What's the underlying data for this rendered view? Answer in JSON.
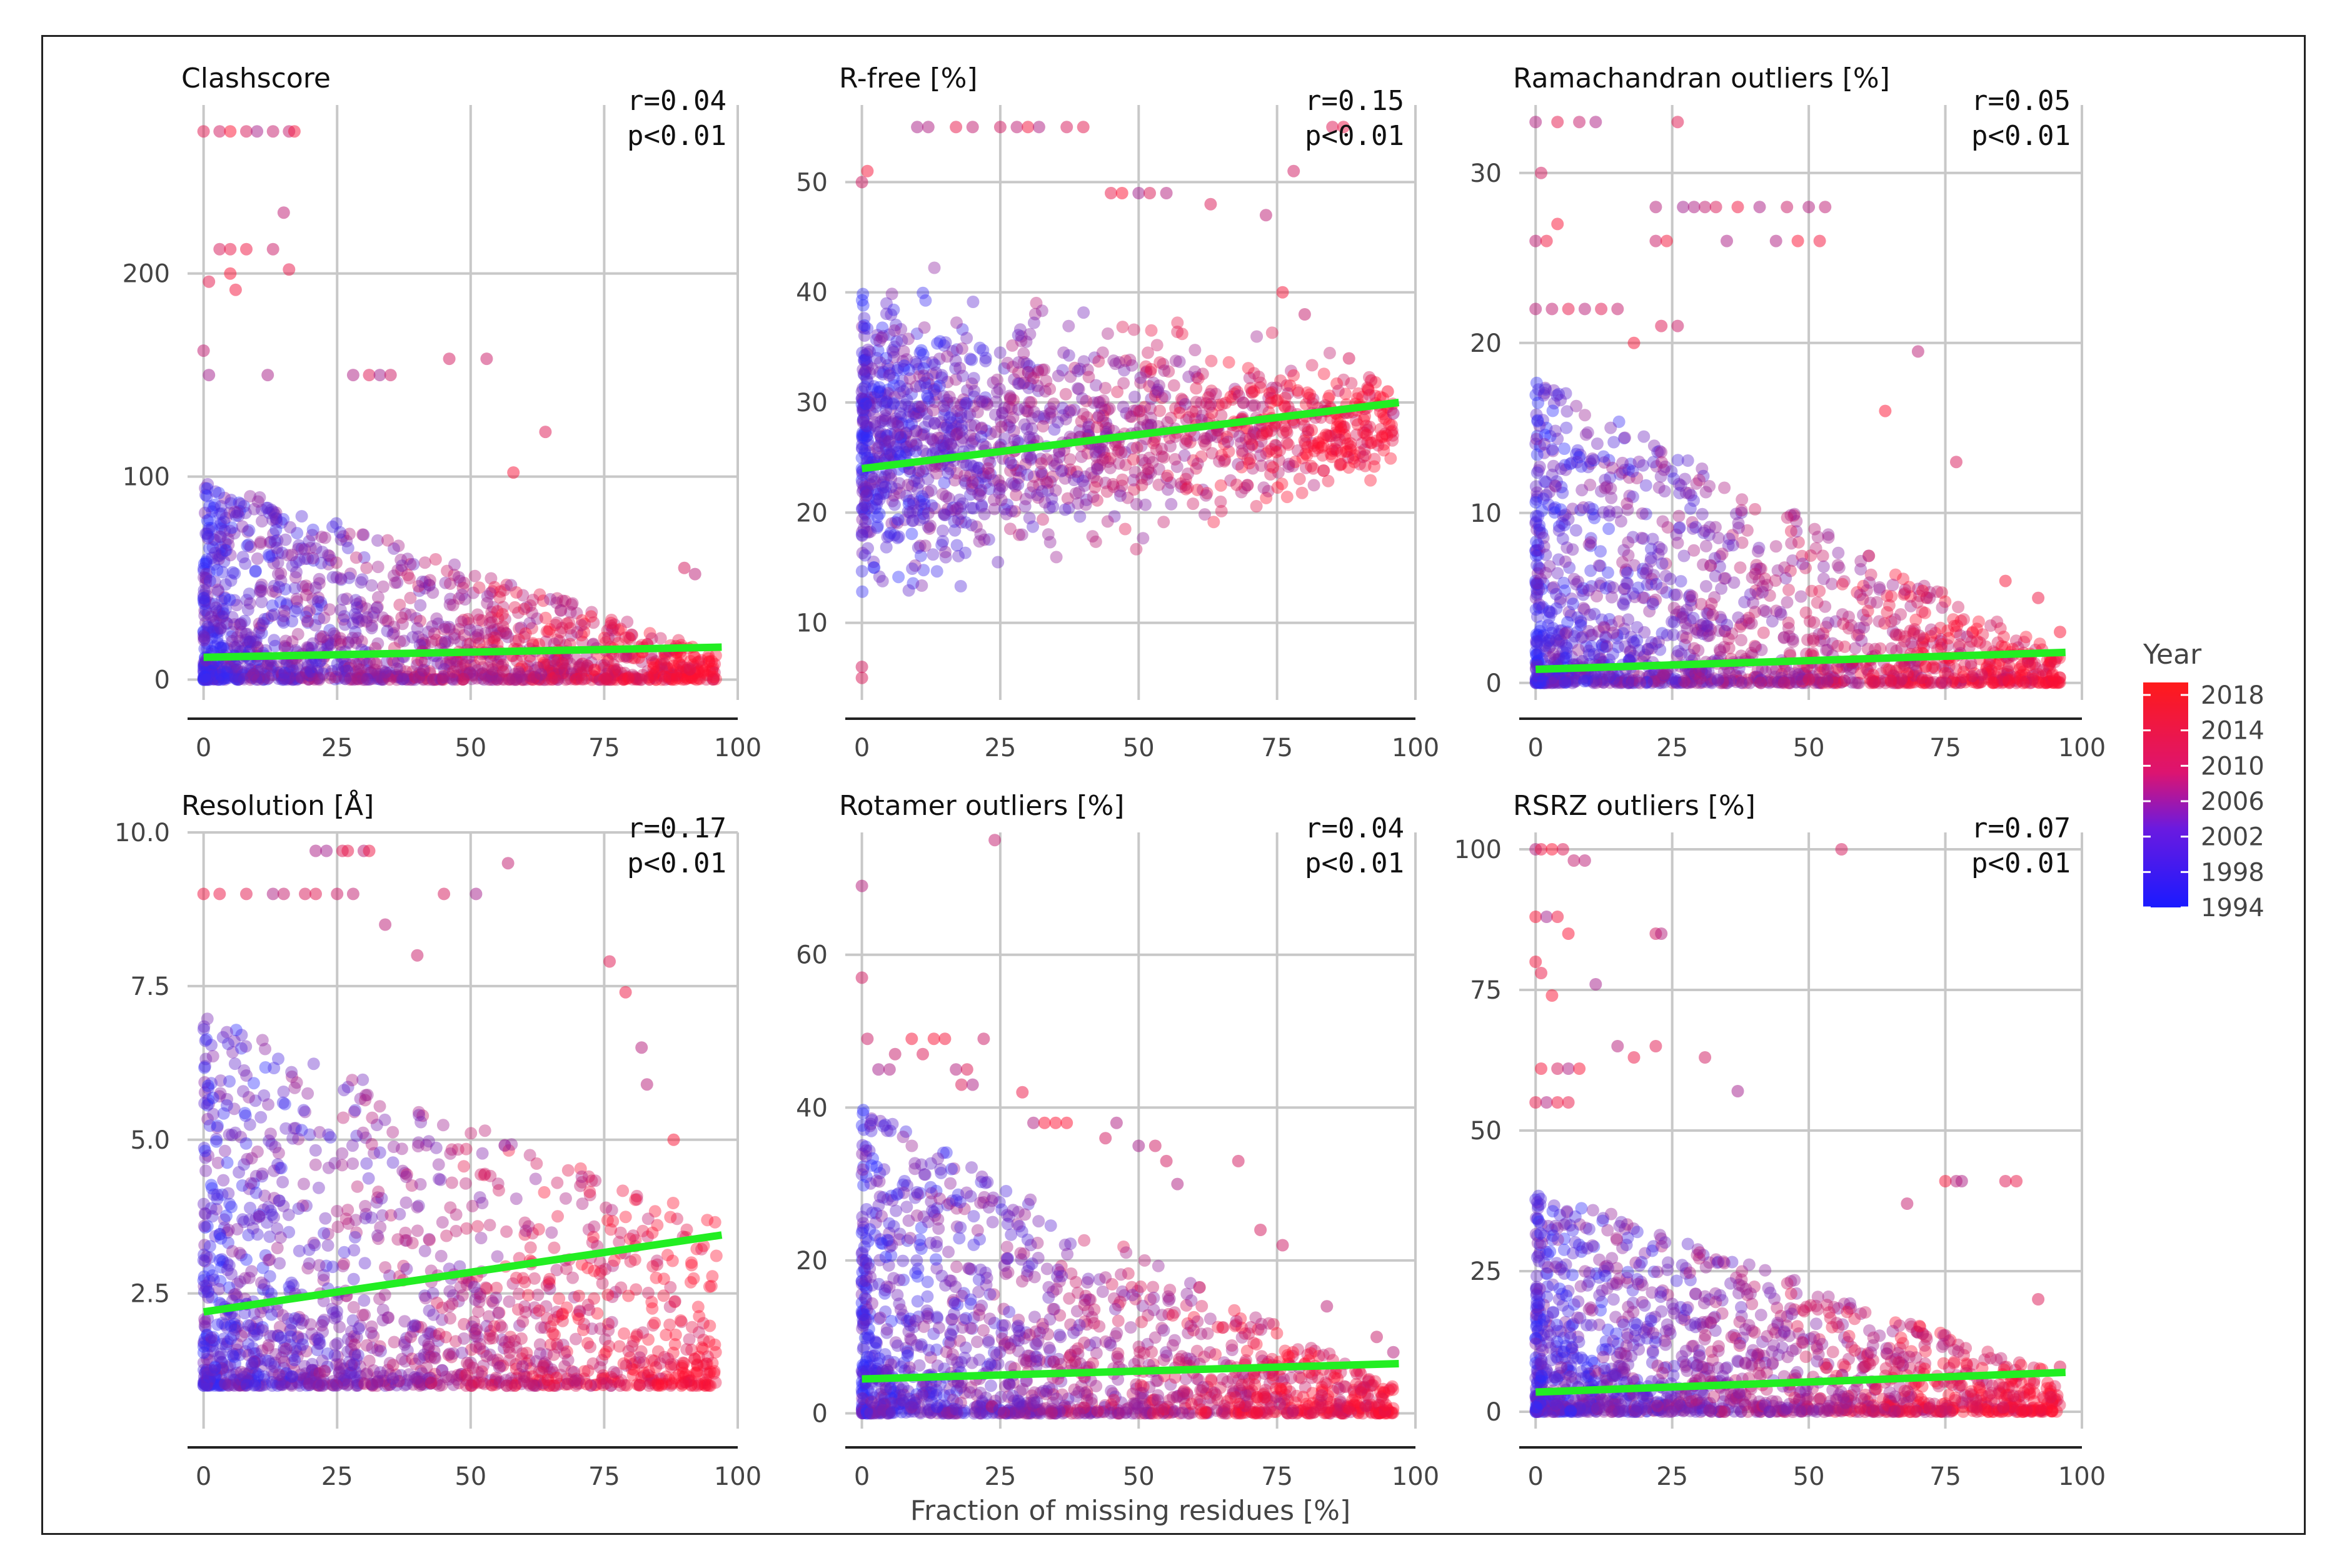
{
  "chart_data": [
    {
      "type": "scatter",
      "title": "Clashscore",
      "xlabel": "",
      "ylabel": "",
      "xlim": [
        -3,
        100
      ],
      "ylim": [
        -10,
        283
      ],
      "xticks": [
        0,
        25,
        50,
        75,
        100
      ],
      "yticks": [
        0,
        100,
        200
      ],
      "ytick_labels": [
        "0",
        "100",
        "200"
      ],
      "grid": true,
      "stats": {
        "r": "r=0.04",
        "p": "p<0.01"
      },
      "fit_line": {
        "x": [
          0,
          97
        ],
        "y": [
          11,
          16
        ],
        "color": "#22ee22"
      },
      "points_summary": {
        "y_min": 0,
        "y_band_top_at_x0": 100,
        "y_band_top_at_x100": 10,
        "y_max": 270,
        "density": "high"
      },
      "outliers": [
        [
          0,
          270
        ],
        [
          3,
          270
        ],
        [
          5,
          270
        ],
        [
          8,
          270
        ],
        [
          10,
          270
        ],
        [
          13,
          270
        ],
        [
          16,
          270
        ],
        [
          17,
          270
        ],
        [
          15,
          230
        ],
        [
          3,
          212
        ],
        [
          5,
          212
        ],
        [
          8,
          212
        ],
        [
          13,
          212
        ],
        [
          16,
          202
        ],
        [
          5,
          200
        ],
        [
          1,
          196
        ],
        [
          6,
          192
        ],
        [
          0,
          162
        ],
        [
          1,
          150
        ],
        [
          12,
          150
        ],
        [
          28,
          150
        ],
        [
          31,
          150
        ],
        [
          33,
          150
        ],
        [
          35,
          150
        ],
        [
          46,
          158
        ],
        [
          53,
          158
        ],
        [
          64,
          122
        ],
        [
          58,
          102
        ],
        [
          90,
          55
        ],
        [
          92,
          52
        ]
      ]
    },
    {
      "type": "scatter",
      "title": "R-free [%]",
      "xlabel": "",
      "ylabel": "",
      "xlim": [
        -3,
        100
      ],
      "ylim": [
        3,
        57
      ],
      "xticks": [
        0,
        25,
        50,
        75,
        100
      ],
      "yticks": [
        10,
        20,
        30,
        40,
        50
      ],
      "ytick_labels": [
        "10",
        "20",
        "30",
        "40",
        "50"
      ],
      "grid": true,
      "stats": {
        "r": "r=0.15",
        "p": "p<0.01"
      },
      "fit_line": {
        "x": [
          0,
          97
        ],
        "y": [
          24,
          30
        ],
        "color": "#22ee22"
      },
      "points_summary": {
        "y_low_at_x0": 8,
        "y_high_at_x0": 45,
        "y_low_at_x100": 22,
        "y_high_at_x100": 34,
        "density": "high"
      },
      "outliers": [
        [
          0,
          5
        ],
        [
          0,
          6
        ],
        [
          0,
          50
        ],
        [
          1,
          51
        ],
        [
          10,
          55
        ],
        [
          12,
          55
        ],
        [
          17,
          55
        ],
        [
          20,
          55
        ],
        [
          25,
          55
        ],
        [
          28,
          55
        ],
        [
          30,
          55
        ],
        [
          32,
          55
        ],
        [
          37,
          55
        ],
        [
          40,
          55
        ],
        [
          45,
          49
        ],
        [
          47,
          49
        ],
        [
          50,
          49
        ],
        [
          52,
          49
        ],
        [
          55,
          49
        ],
        [
          63,
          48
        ],
        [
          73,
          47
        ],
        [
          78,
          51
        ],
        [
          85,
          55
        ],
        [
          87,
          55
        ],
        [
          76,
          40
        ],
        [
          80,
          38
        ],
        [
          88,
          34
        ],
        [
          92,
          32
        ],
        [
          95,
          31
        ],
        [
          96,
          29
        ]
      ]
    },
    {
      "type": "scatter",
      "title": "Ramachandran outliers [%]",
      "xlabel": "",
      "ylabel": "",
      "xlim": [
        -3,
        100
      ],
      "ylim": [
        -1,
        34
      ],
      "xticks": [
        0,
        25,
        50,
        75,
        100
      ],
      "yticks": [
        0,
        10,
        20,
        30
      ],
      "ytick_labels": [
        "0",
        "10",
        "20",
        "30"
      ],
      "grid": true,
      "stats": {
        "r": "r=0.05",
        "p": "p<0.01"
      },
      "fit_line": {
        "x": [
          0,
          97
        ],
        "y": [
          0.8,
          1.8
        ],
        "color": "#22ee22"
      },
      "points_summary": {
        "y_min": 0,
        "y_band_top_at_x0": 18,
        "y_band_top_at_x100": 1,
        "y_max": 33,
        "density": "high"
      },
      "outliers": [
        [
          0,
          33
        ],
        [
          1,
          30
        ],
        [
          4,
          33
        ],
        [
          8,
          33
        ],
        [
          11,
          33
        ],
        [
          26,
          33
        ],
        [
          0,
          26
        ],
        [
          2,
          26
        ],
        [
          4,
          27
        ],
        [
          22,
          26
        ],
        [
          22,
          28
        ],
        [
          24,
          26
        ],
        [
          27,
          28
        ],
        [
          29,
          28
        ],
        [
          31,
          28
        ],
        [
          33,
          28
        ],
        [
          35,
          26
        ],
        [
          37,
          28
        ],
        [
          41,
          28
        ],
        [
          44,
          26
        ],
        [
          46,
          28
        ],
        [
          48,
          26
        ],
        [
          50,
          28
        ],
        [
          52,
          26
        ],
        [
          53,
          28
        ],
        [
          0,
          22
        ],
        [
          3,
          22
        ],
        [
          6,
          22
        ],
        [
          9,
          22
        ],
        [
          12,
          22
        ],
        [
          15,
          22
        ],
        [
          18,
          20
        ],
        [
          23,
          21
        ],
        [
          26,
          21
        ],
        [
          70,
          19.5
        ],
        [
          64,
          16
        ],
        [
          77,
          13
        ],
        [
          86,
          6
        ],
        [
          92,
          5
        ],
        [
          96,
          3
        ]
      ]
    },
    {
      "type": "scatter",
      "title": "Resolution [Å]",
      "xlabel": "",
      "ylabel": "",
      "xlim": [
        -3,
        100
      ],
      "ylim": [
        0.3,
        10.0
      ],
      "xticks": [
        0,
        25,
        50,
        75,
        100
      ],
      "yticks": [
        2.5,
        5.0,
        7.5,
        10.0
      ],
      "ytick_labels": [
        "2.5",
        "5.0",
        "7.5",
        "10.0"
      ],
      "grid": true,
      "stats": {
        "r": "r=0.17",
        "p": "p<0.01"
      },
      "fit_line": {
        "x": [
          0,
          97
        ],
        "y": [
          2.2,
          3.45
        ],
        "color": "#22ee22"
      },
      "points_summary": {
        "y_min": 1.0,
        "y_band_top_at_x0": 7.0,
        "y_band_top_at_x100": 3.6,
        "y_max": 9.7,
        "density": "high"
      },
      "outliers": [
        [
          21,
          9.7
        ],
        [
          23,
          9.7
        ],
        [
          26,
          9.7
        ],
        [
          27,
          9.7
        ],
        [
          30,
          9.7
        ],
        [
          31,
          9.7
        ],
        [
          0,
          9.0
        ],
        [
          3,
          9.0
        ],
        [
          8,
          9.0
        ],
        [
          13,
          9.0
        ],
        [
          15,
          9.0
        ],
        [
          19,
          9.0
        ],
        [
          21,
          9.0
        ],
        [
          25,
          9.0
        ],
        [
          28,
          9.0
        ],
        [
          45,
          9.0
        ],
        [
          51,
          9.0
        ],
        [
          57,
          9.5
        ],
        [
          34,
          8.5
        ],
        [
          40,
          8.0
        ],
        [
          76,
          7.9
        ],
        [
          79,
          7.4
        ],
        [
          82,
          6.5
        ],
        [
          83,
          5.9
        ],
        [
          88,
          5.0
        ]
      ]
    },
    {
      "type": "scatter",
      "title": "Rotamer outliers [%]",
      "xlabel": "",
      "ylabel": "",
      "xlim": [
        -3,
        100
      ],
      "ylim": [
        -2,
        76
      ],
      "xticks": [
        0,
        25,
        50,
        75,
        100
      ],
      "yticks": [
        0,
        20,
        40,
        60
      ],
      "ytick_labels": [
        "0",
        "20",
        "40",
        "60"
      ],
      "grid": true,
      "stats": {
        "r": "r=0.04",
        "p": "p<0.01"
      },
      "fit_line": {
        "x": [
          0,
          97
        ],
        "y": [
          4.5,
          6.5
        ],
        "color": "#22ee22"
      },
      "points_summary": {
        "y_min": 0,
        "y_band_top_at_x0": 40,
        "y_band_top_at_x100": 2,
        "y_max": 75,
        "density": "high"
      },
      "outliers": [
        [
          0,
          69
        ],
        [
          0,
          57
        ],
        [
          24,
          75
        ],
        [
          1,
          49
        ],
        [
          3,
          45
        ],
        [
          5,
          45
        ],
        [
          6,
          47
        ],
        [
          9,
          49
        ],
        [
          11,
          47
        ],
        [
          13,
          49
        ],
        [
          15,
          49
        ],
        [
          17,
          45
        ],
        [
          19,
          45
        ],
        [
          22,
          49
        ],
        [
          18,
          43
        ],
        [
          20,
          43
        ],
        [
          29,
          42
        ],
        [
          31,
          38
        ],
        [
          33,
          38
        ],
        [
          35,
          38
        ],
        [
          37,
          38
        ],
        [
          44,
          36
        ],
        [
          46,
          38
        ],
        [
          50,
          35
        ],
        [
          53,
          35
        ],
        [
          55,
          33
        ],
        [
          57,
          30
        ],
        [
          68,
          33
        ],
        [
          72,
          24
        ],
        [
          76,
          22
        ],
        [
          84,
          14
        ],
        [
          93,
          10
        ],
        [
          96,
          8
        ]
      ]
    },
    {
      "type": "scatter",
      "title": "RSRZ outliers [%]",
      "xlabel": "",
      "ylabel": "",
      "xlim": [
        -3,
        100
      ],
      "ylim": [
        -3,
        103
      ],
      "xticks": [
        0,
        25,
        50,
        75,
        100
      ],
      "yticks": [
        0,
        25,
        50,
        75,
        100
      ],
      "ytick_labels": [
        "0",
        "25",
        "50",
        "75",
        "100"
      ],
      "grid": true,
      "stats": {
        "r": "r=0.07",
        "p": "p<0.01"
      },
      "fit_line": {
        "x": [
          0,
          97
        ],
        "y": [
          3.5,
          7.0
        ],
        "color": "#22ee22"
      },
      "points_summary": {
        "y_min": 0,
        "y_band_top_at_x0": 40,
        "y_band_top_at_x100": 5,
        "y_max": 100,
        "density": "high"
      },
      "outliers": [
        [
          0,
          100
        ],
        [
          1,
          100
        ],
        [
          3,
          100
        ],
        [
          5,
          100
        ],
        [
          7,
          98
        ],
        [
          9,
          98
        ],
        [
          56,
          100
        ],
        [
          0,
          88
        ],
        [
          2,
          88
        ],
        [
          4,
          88
        ],
        [
          6,
          85
        ],
        [
          22,
          85
        ],
        [
          23,
          85
        ],
        [
          0,
          80
        ],
        [
          1,
          78
        ],
        [
          3,
          74
        ],
        [
          11,
          76
        ],
        [
          15,
          65
        ],
        [
          18,
          63
        ],
        [
          22,
          65
        ],
        [
          31,
          63
        ],
        [
          37,
          57
        ],
        [
          1,
          61
        ],
        [
          4,
          61
        ],
        [
          6,
          61
        ],
        [
          8,
          61
        ],
        [
          0,
          55
        ],
        [
          2,
          55
        ],
        [
          4,
          55
        ],
        [
          6,
          55
        ],
        [
          68,
          37
        ],
        [
          75,
          41
        ],
        [
          77,
          41
        ],
        [
          78,
          41
        ],
        [
          86,
          41
        ],
        [
          88,
          41
        ],
        [
          92,
          20
        ],
        [
          96,
          8
        ]
      ]
    }
  ],
  "shared_xlabel": "Fraction of missing residues [%]",
  "legend": {
    "title": "Year",
    "labels": [
      "2018",
      "2014",
      "2010",
      "2006",
      "2002",
      "1998",
      "1994"
    ],
    "color_top": "#ff1a1a",
    "color_mid": "#dd1470",
    "color_bottom": "#1a1aff",
    "position": "right"
  },
  "colors": {
    "grid": "#c8c8c8",
    "axis": "#222222",
    "fit": "#22ee22",
    "year_old": "#2a2aff",
    "year_new": "#ff1030"
  }
}
